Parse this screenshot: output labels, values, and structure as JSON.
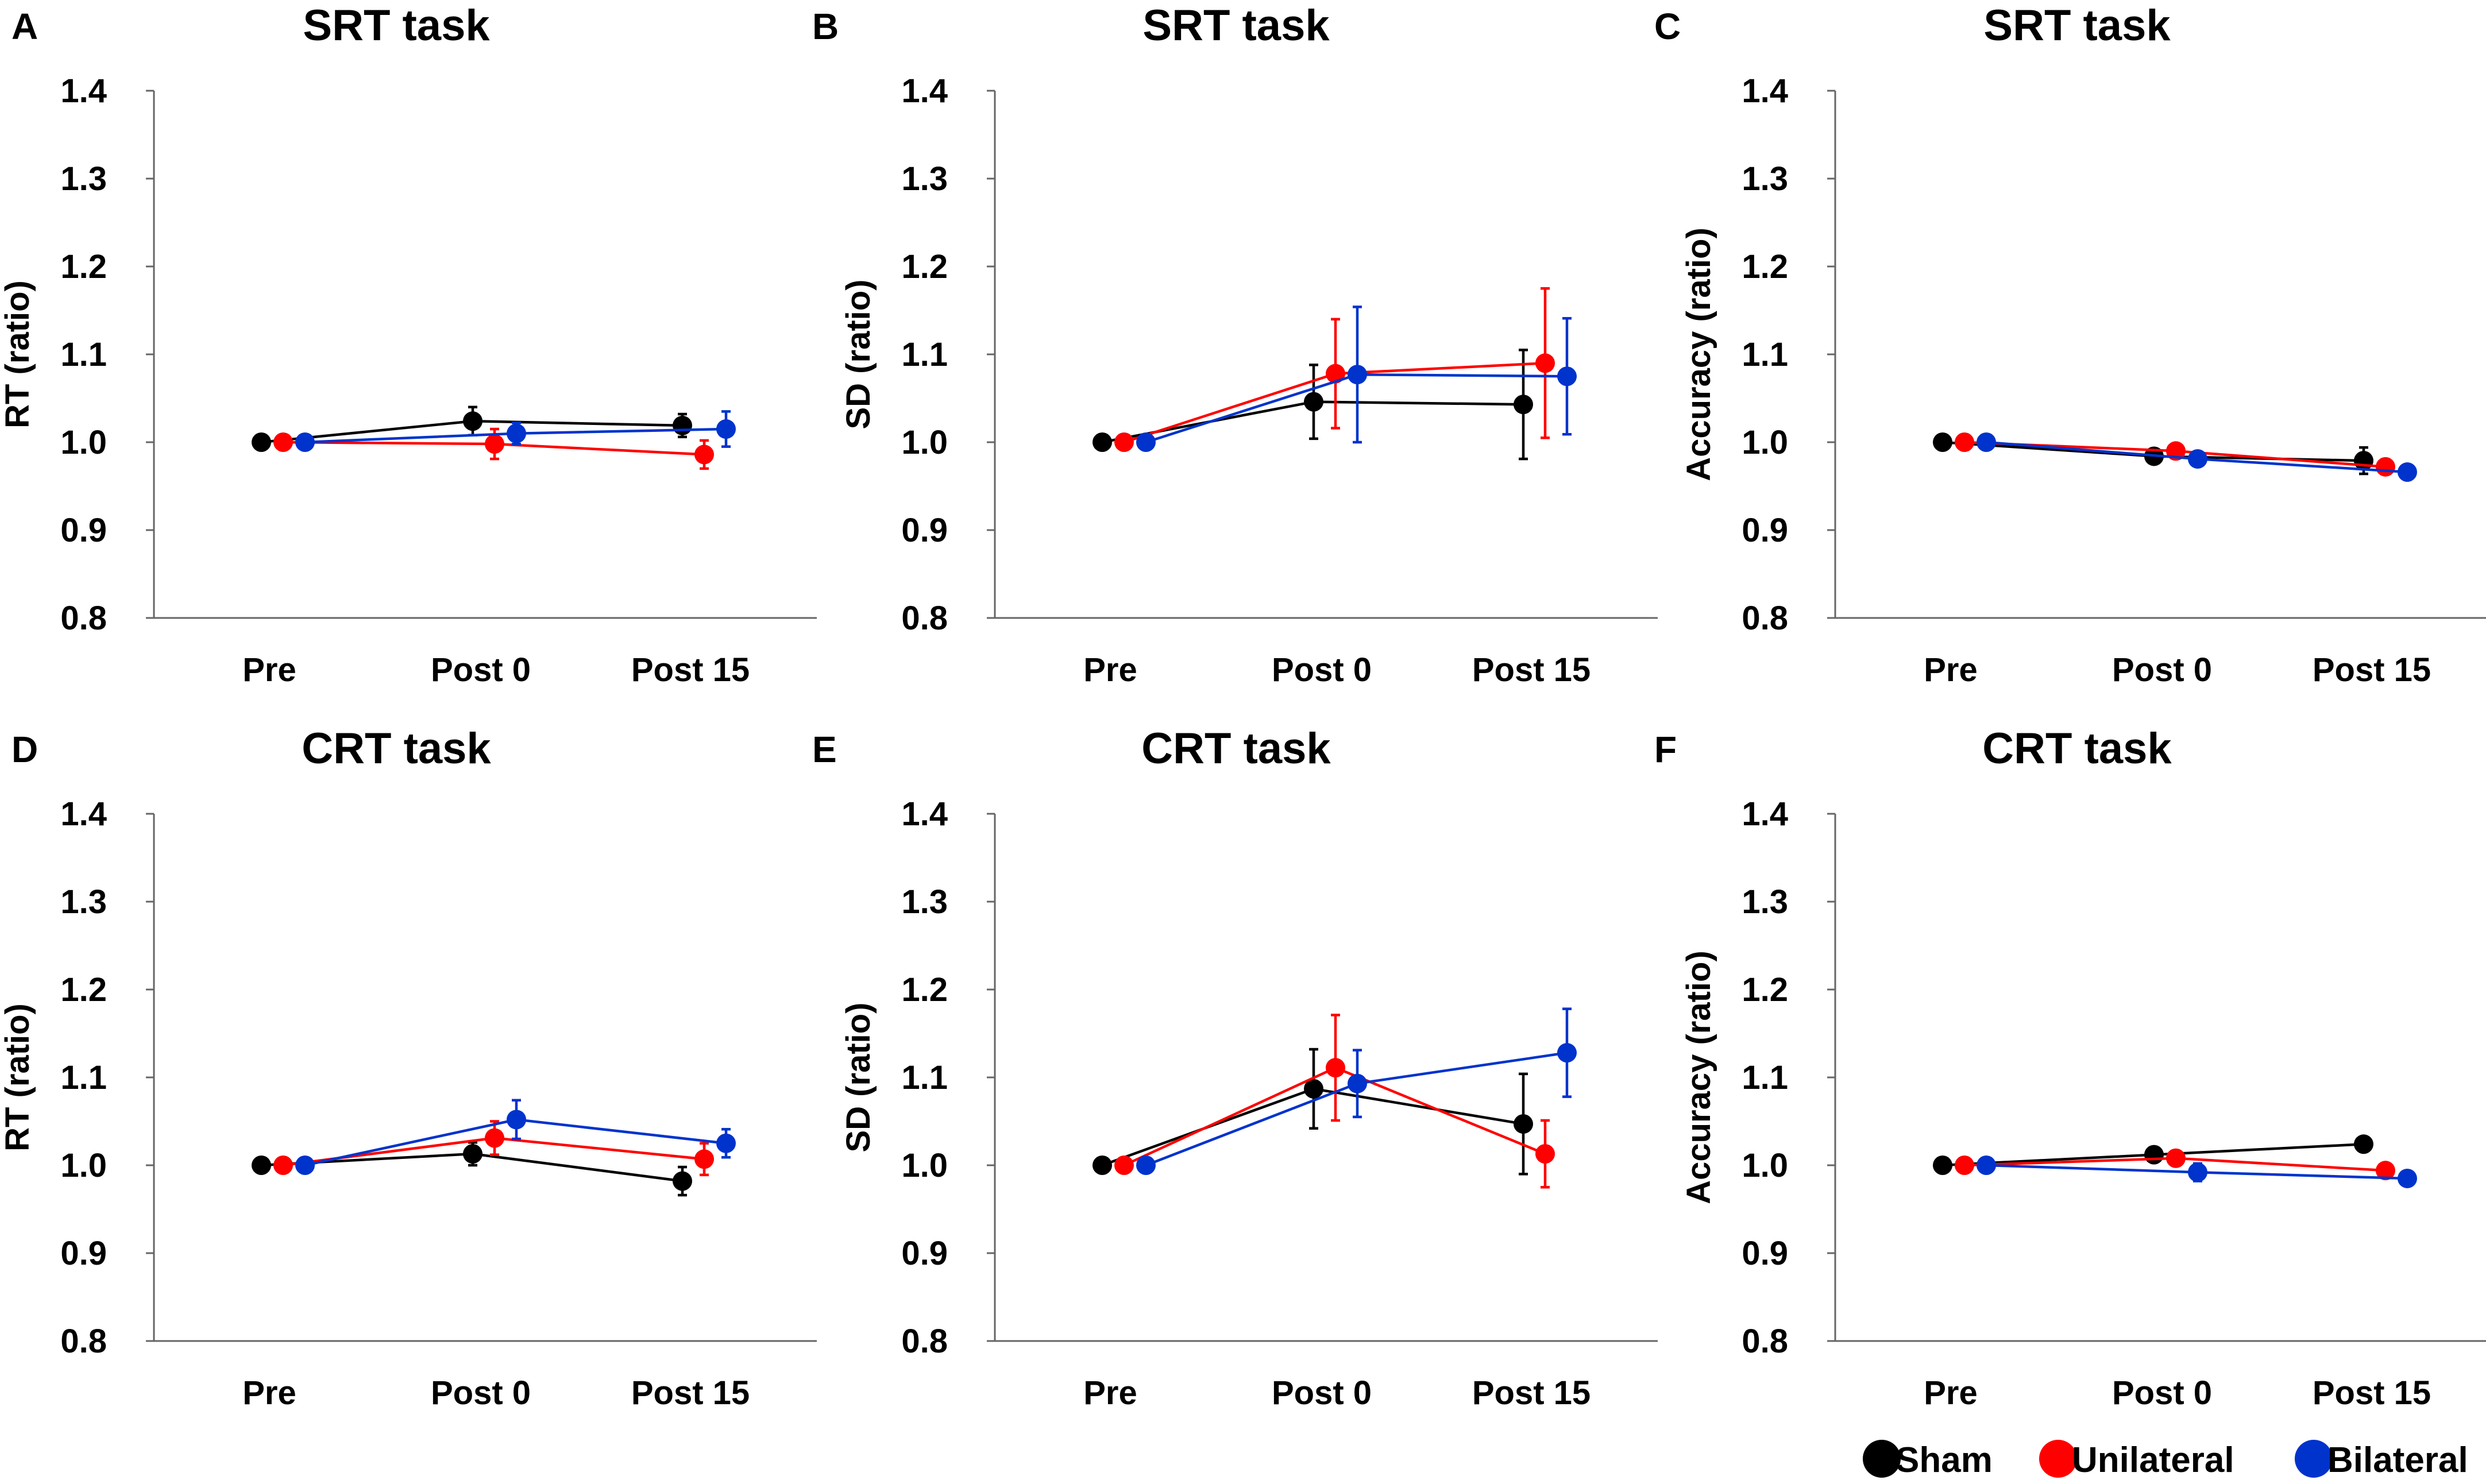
{
  "legend": [
    {
      "name": "Sham",
      "color": "#000000"
    },
    {
      "name": "Unilateral",
      "color": "#ff0000"
    },
    {
      "name": "Bilateral",
      "color": "#0033cc"
    }
  ],
  "chart_data": [
    {
      "panel": "A",
      "type": "line",
      "title": "SRT task",
      "xlabel": "",
      "ylabel": "RT (ratio)",
      "categories": [
        "Pre",
        "Post 0",
        "Post 15"
      ],
      "ylim": [
        0.8,
        1.4
      ],
      "yticks": [
        "0.8",
        "0.9",
        "1.0",
        "1.1",
        "1.2",
        "1.3",
        "1.4"
      ],
      "series": [
        {
          "name": "Sham",
          "values": [
            1.0,
            1.024,
            1.019
          ],
          "errors": [
            0,
            0.016,
            0.013
          ]
        },
        {
          "name": "Unilateral",
          "values": [
            1.0,
            0.998,
            0.986
          ],
          "errors": [
            0,
            0.017,
            0.016
          ]
        },
        {
          "name": "Bilateral",
          "values": [
            1.0,
            1.01,
            1.015
          ],
          "errors": [
            0,
            0.012,
            0.02
          ]
        }
      ]
    },
    {
      "panel": "B",
      "type": "line",
      "title": "SRT task",
      "xlabel": "",
      "ylabel": "SD (ratio)",
      "categories": [
        "Pre",
        "Post 0",
        "Post 15"
      ],
      "ylim": [
        0.8,
        1.4
      ],
      "yticks": [
        "0.8",
        "0.9",
        "1.0",
        "1.1",
        "1.2",
        "1.3",
        "1.4"
      ],
      "series": [
        {
          "name": "Sham",
          "values": [
            1.0,
            1.046,
            1.043
          ],
          "errors": [
            0,
            0.042,
            0.062
          ]
        },
        {
          "name": "Unilateral",
          "values": [
            1.0,
            1.078,
            1.09
          ],
          "errors": [
            0,
            0.062,
            0.085
          ]
        },
        {
          "name": "Bilateral",
          "values": [
            1.0,
            1.077,
            1.075
          ],
          "errors": [
            0,
            0.077,
            0.066
          ]
        }
      ]
    },
    {
      "panel": "C",
      "type": "line",
      "title": "SRT task",
      "xlabel": "",
      "ylabel": "Accuracy (ratio)",
      "categories": [
        "Pre",
        "Post 0",
        "Post 15"
      ],
      "ylim": [
        0.8,
        1.4
      ],
      "yticks": [
        "0.8",
        "0.9",
        "1.0",
        "1.1",
        "1.2",
        "1.3",
        "1.4"
      ],
      "series": [
        {
          "name": "Sham",
          "values": [
            1.0,
            0.984,
            0.979
          ],
          "errors": [
            0,
            0.008,
            0.015
          ]
        },
        {
          "name": "Unilateral",
          "values": [
            1.0,
            0.99,
            0.972
          ],
          "errors": [
            0,
            0.006,
            0.008
          ]
        },
        {
          "name": "Bilateral",
          "values": [
            1.0,
            0.981,
            0.966
          ],
          "errors": [
            0,
            0.007,
            0.006
          ]
        }
      ]
    },
    {
      "panel": "D",
      "type": "line",
      "title": "CRT task",
      "xlabel": "",
      "ylabel": "RT (ratio)",
      "categories": [
        "Pre",
        "Post 0",
        "Post 15"
      ],
      "ylim": [
        0.8,
        1.4
      ],
      "yticks": [
        "0.8",
        "0.9",
        "1.0",
        "1.1",
        "1.2",
        "1.3",
        "1.4"
      ],
      "series": [
        {
          "name": "Sham",
          "values": [
            1.0,
            1.013,
            0.982
          ],
          "errors": [
            0,
            0.013,
            0.016
          ]
        },
        {
          "name": "Unilateral",
          "values": [
            1.0,
            1.031,
            1.007
          ],
          "errors": [
            0,
            0.019,
            0.018
          ]
        },
        {
          "name": "Bilateral",
          "values": [
            1.0,
            1.052,
            1.025
          ],
          "errors": [
            0,
            0.022,
            0.016
          ]
        }
      ]
    },
    {
      "panel": "E",
      "type": "line",
      "title": "CRT task",
      "xlabel": "",
      "ylabel": "SD (ratio)",
      "categories": [
        "Pre",
        "Post 0",
        "Post 15"
      ],
      "ylim": [
        0.8,
        1.4
      ],
      "yticks": [
        "0.8",
        "0.9",
        "1.0",
        "1.1",
        "1.2",
        "1.3",
        "1.4"
      ],
      "series": [
        {
          "name": "Sham",
          "values": [
            1.0,
            1.087,
            1.047
          ],
          "errors": [
            0,
            0.045,
            0.057
          ]
        },
        {
          "name": "Unilateral",
          "values": [
            1.0,
            1.111,
            1.013
          ],
          "errors": [
            0,
            0.06,
            0.038
          ]
        },
        {
          "name": "Bilateral",
          "values": [
            1.0,
            1.093,
            1.128
          ],
          "errors": [
            0,
            0.038,
            0.05
          ]
        }
      ]
    },
    {
      "panel": "F",
      "type": "line",
      "title": "CRT task",
      "xlabel": "",
      "ylabel": "Accuracy (ratio)",
      "categories": [
        "Pre",
        "Post 0",
        "Post 15"
      ],
      "ylim": [
        0.8,
        1.4
      ],
      "yticks": [
        "0.8",
        "0.9",
        "1.0",
        "1.1",
        "1.2",
        "1.3",
        "1.4"
      ],
      "series": [
        {
          "name": "Sham",
          "values": [
            1.0,
            1.012,
            1.024
          ],
          "errors": [
            0,
            0.006,
            0.005
          ]
        },
        {
          "name": "Unilateral",
          "values": [
            1.0,
            1.008,
            0.994
          ],
          "errors": [
            0,
            0.006,
            0.005
          ]
        },
        {
          "name": "Bilateral",
          "values": [
            1.0,
            0.992,
            0.985
          ],
          "errors": [
            0,
            0.01,
            0.006
          ]
        }
      ]
    }
  ]
}
